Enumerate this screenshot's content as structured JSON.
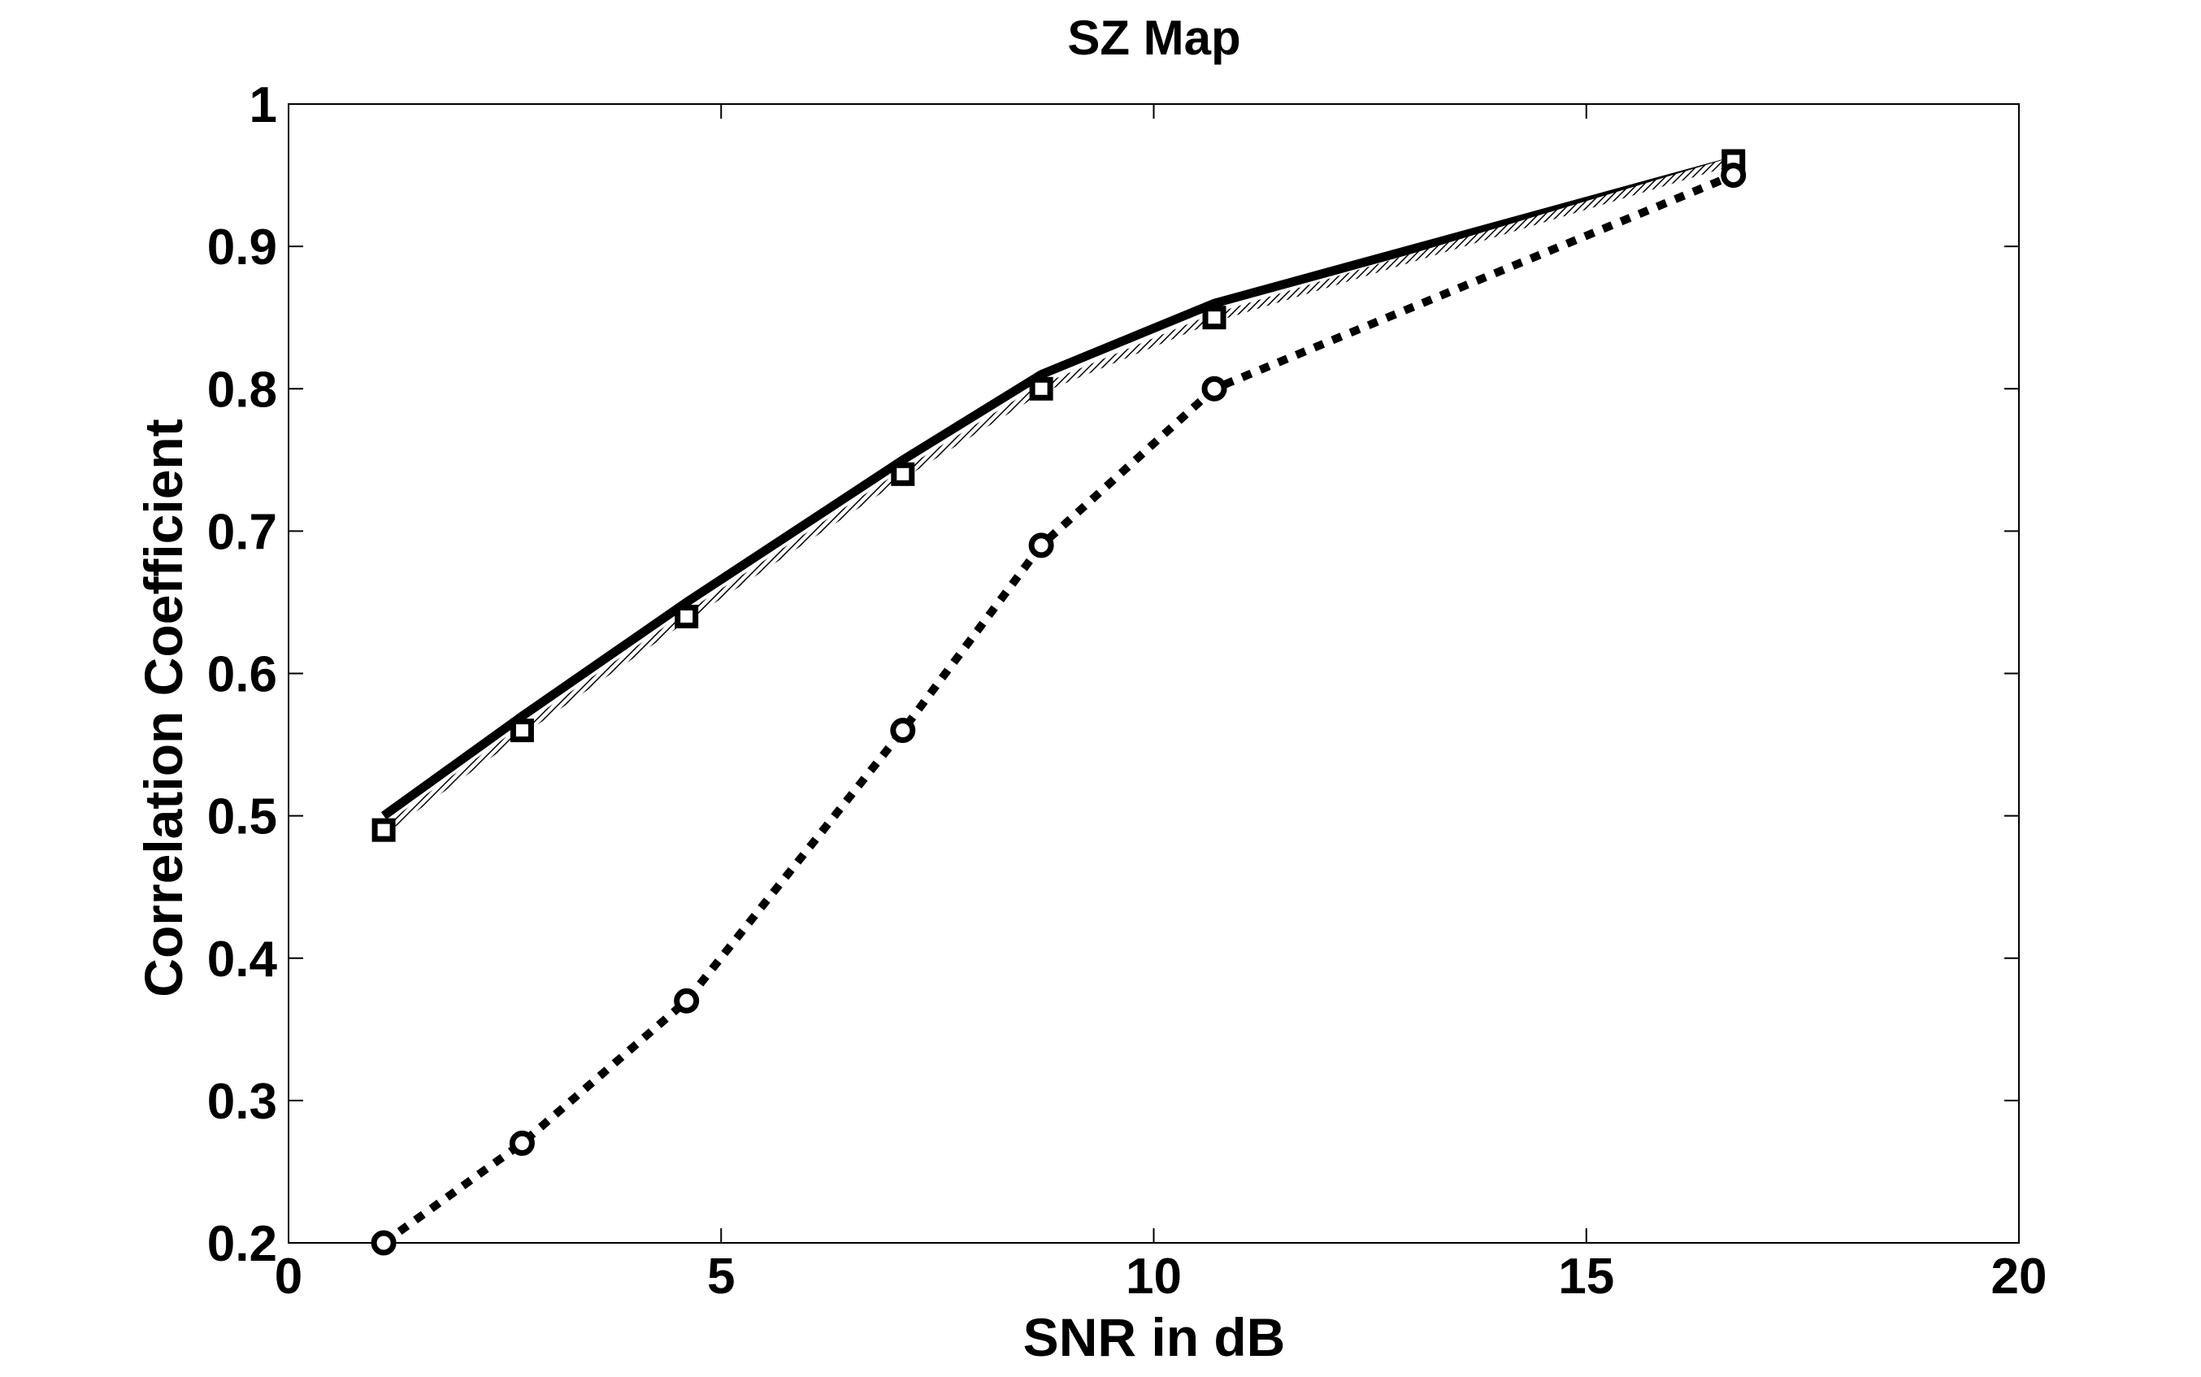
{
  "chart_data": {
    "type": "line",
    "title": "SZ Map",
    "xlabel": "SNR in dB",
    "ylabel": "Correlation Coefficient",
    "xlim": [
      0,
      20
    ],
    "ylim": [
      0.2,
      1
    ],
    "xticks": [
      0,
      5,
      10,
      15,
      20
    ],
    "xtick_labels": [
      "0",
      "5",
      "10",
      "15",
      "20"
    ],
    "yticks": [
      0.2,
      0.3,
      0.4,
      0.5,
      0.6,
      0.7,
      0.8,
      0.9,
      1
    ],
    "ytick_labels": [
      "0.2",
      "0.3",
      "0.4",
      "0.5",
      "0.6",
      "0.7",
      "0.8",
      "0.9",
      "1"
    ],
    "grid": false,
    "legend": false,
    "series": [
      {
        "style": "solid",
        "marker": "none",
        "color": "#000000",
        "x": [
          1.1,
          2.7,
          4.6,
          7.1,
          8.7,
          10.7,
          16.7
        ],
        "y": [
          0.5,
          0.57,
          0.65,
          0.75,
          0.81,
          0.86,
          0.96
        ]
      },
      {
        "style": "hatched",
        "marker": "square",
        "color": "#000000",
        "x": [
          1.1,
          2.7,
          4.6,
          7.1,
          8.7,
          10.7,
          16.7
        ],
        "y": [
          0.49,
          0.56,
          0.64,
          0.74,
          0.8,
          0.85,
          0.96
        ]
      },
      {
        "style": "dotted",
        "marker": "circle",
        "color": "#000000",
        "x": [
          1.1,
          2.7,
          4.6,
          7.1,
          8.7,
          10.7,
          16.7
        ],
        "y": [
          0.2,
          0.27,
          0.37,
          0.56,
          0.69,
          0.8,
          0.95
        ]
      }
    ]
  }
}
